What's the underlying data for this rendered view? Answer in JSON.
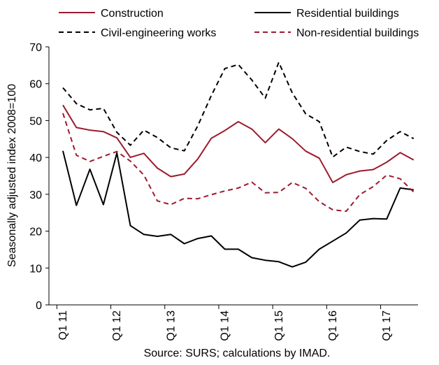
{
  "chart_data": {
    "type": "line",
    "title": "",
    "xlabel": "",
    "ylabel": "Seasonally adjusted index 2008=100",
    "source": "Source: SURS; calculations by IMAD.",
    "ylim": [
      0,
      70
    ],
    "yticks": [
      0,
      10,
      20,
      30,
      40,
      50,
      60,
      70
    ],
    "grid": false,
    "legend_position": "top",
    "x_labels": [
      {
        "label": "Q1 11",
        "index": 0
      },
      {
        "label": "Q1 12",
        "index": 4
      },
      {
        "label": "Q1 13",
        "index": 8
      },
      {
        "label": "Q1 14",
        "index": 12
      },
      {
        "label": "Q1 15",
        "index": 16
      },
      {
        "label": "Q1 16",
        "index": 20
      },
      {
        "label": "Q1 17",
        "index": 24
      }
    ],
    "series": [
      {
        "name": "Construction",
        "color": "#9c1b2e",
        "dash": "solid",
        "values": [
          54.2,
          48.1,
          47.4,
          47.0,
          45.3,
          40.0,
          41.1,
          37.1,
          34.8,
          35.5,
          39.6,
          45.2,
          47.3,
          49.7,
          47.7,
          44.0,
          47.7,
          45.1,
          41.7,
          39.8,
          33.2,
          35.3,
          36.3,
          36.7,
          38.7,
          41.3,
          39.3
        ]
      },
      {
        "name": "Residential buildings",
        "color": "#000000",
        "dash": "solid",
        "values": [
          41.8,
          27.0,
          36.8,
          27.2,
          41.2,
          21.5,
          19.1,
          18.6,
          19.1,
          16.6,
          18.0,
          18.7,
          15.1,
          15.1,
          12.8,
          12.1,
          11.7,
          10.3,
          11.6,
          15.1,
          17.3,
          19.5,
          23.0,
          23.4,
          23.3,
          31.7,
          31.2
        ]
      },
      {
        "name": "Civil-engineering works",
        "color": "#000000",
        "dash": "dashed",
        "values": [
          58.9,
          54.6,
          52.9,
          53.3,
          46.8,
          43.3,
          47.4,
          45.4,
          42.6,
          41.8,
          48.6,
          56.8,
          64.1,
          65.2,
          61.0,
          56.1,
          65.8,
          57.5,
          51.8,
          49.7,
          40.1,
          42.8,
          41.6,
          40.9,
          44.6,
          47.0,
          45.1
        ]
      },
      {
        "name": "Non-residential buildings",
        "color": "#9c1b2e",
        "dash": "dashed",
        "values": [
          52.0,
          40.6,
          38.9,
          40.3,
          41.6,
          39.0,
          35.2,
          28.2,
          27.2,
          28.9,
          28.8,
          29.9,
          30.9,
          31.7,
          33.3,
          30.4,
          30.5,
          33.2,
          31.6,
          28.0,
          25.8,
          25.4,
          29.9,
          32.1,
          35.2,
          34.2,
          30.6
        ]
      }
    ]
  }
}
